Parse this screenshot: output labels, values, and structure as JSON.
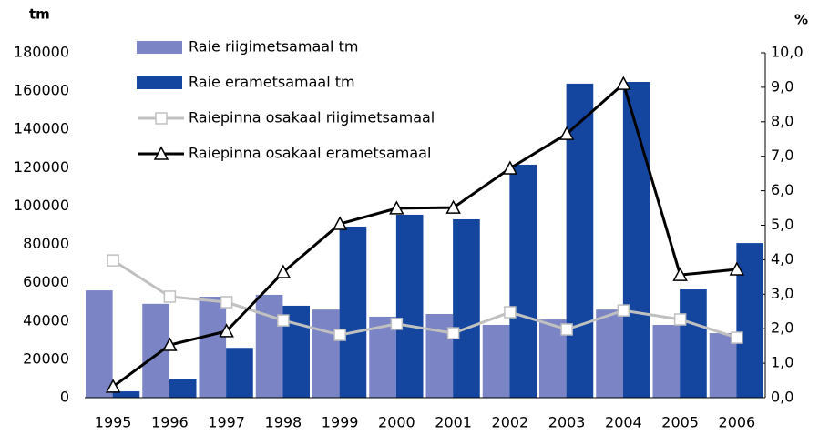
{
  "chart_data": {
    "type": "bar_line",
    "y_label": "tm",
    "y2_label": "%",
    "categories": [
      "1995",
      "1996",
      "1997",
      "1998",
      "1999",
      "2000",
      "2001",
      "2002",
      "2003",
      "2004",
      "2005",
      "2006"
    ],
    "series": [
      {
        "name": "Raie riigimetsamaal tm",
        "type": "bar",
        "color": "#7b84c4",
        "values": [
          56000,
          49000,
          52700,
          53700,
          46000,
          42300,
          43700,
          38000,
          40800,
          46000,
          38000,
          33700
        ]
      },
      {
        "name": "Raie erametsamaal tm",
        "type": "bar",
        "color": "#1446a0",
        "values": [
          3300,
          9500,
          26000,
          48000,
          89300,
          95500,
          93100,
          121600,
          163900,
          164800,
          56500,
          80700
        ]
      },
      {
        "name": "Raiepinna osakaal riigimetsamaal",
        "type": "line",
        "axis": "y2",
        "color": "#c0c0c0",
        "marker": "square",
        "values": [
          3.98,
          2.93,
          2.77,
          2.24,
          1.82,
          2.14,
          1.87,
          2.48,
          1.98,
          2.53,
          2.27,
          1.74
        ]
      },
      {
        "name": "Raiepinna osakaal erametsamaal",
        "type": "line",
        "axis": "y2",
        "color": "#000000",
        "marker": "triangle",
        "values": [
          0.32,
          1.53,
          1.93,
          3.64,
          5.04,
          5.49,
          5.51,
          6.65,
          7.65,
          9.1,
          3.56,
          3.72
        ]
      }
    ],
    "ylim": [
      0,
      180000
    ],
    "yticks": [
      0,
      20000,
      40000,
      60000,
      80000,
      100000,
      120000,
      140000,
      160000,
      180000
    ],
    "y2lim": [
      0,
      10
    ],
    "y2ticks": [
      {
        "value": 0,
        "label": "0,0"
      },
      {
        "value": 1,
        "label": "1,0"
      },
      {
        "value": 2,
        "label": "2,0"
      },
      {
        "value": 3,
        "label": "3,0"
      },
      {
        "value": 4,
        "label": "4,0"
      },
      {
        "value": 5,
        "label": "5,0"
      },
      {
        "value": 6,
        "label": "6,0"
      },
      {
        "value": 7,
        "label": "7,0"
      },
      {
        "value": 8,
        "label": "8,0"
      },
      {
        "value": 9,
        "label": "9,0"
      },
      {
        "value": 10,
        "label": "10,0"
      }
    ],
    "legend": "top-left"
  }
}
